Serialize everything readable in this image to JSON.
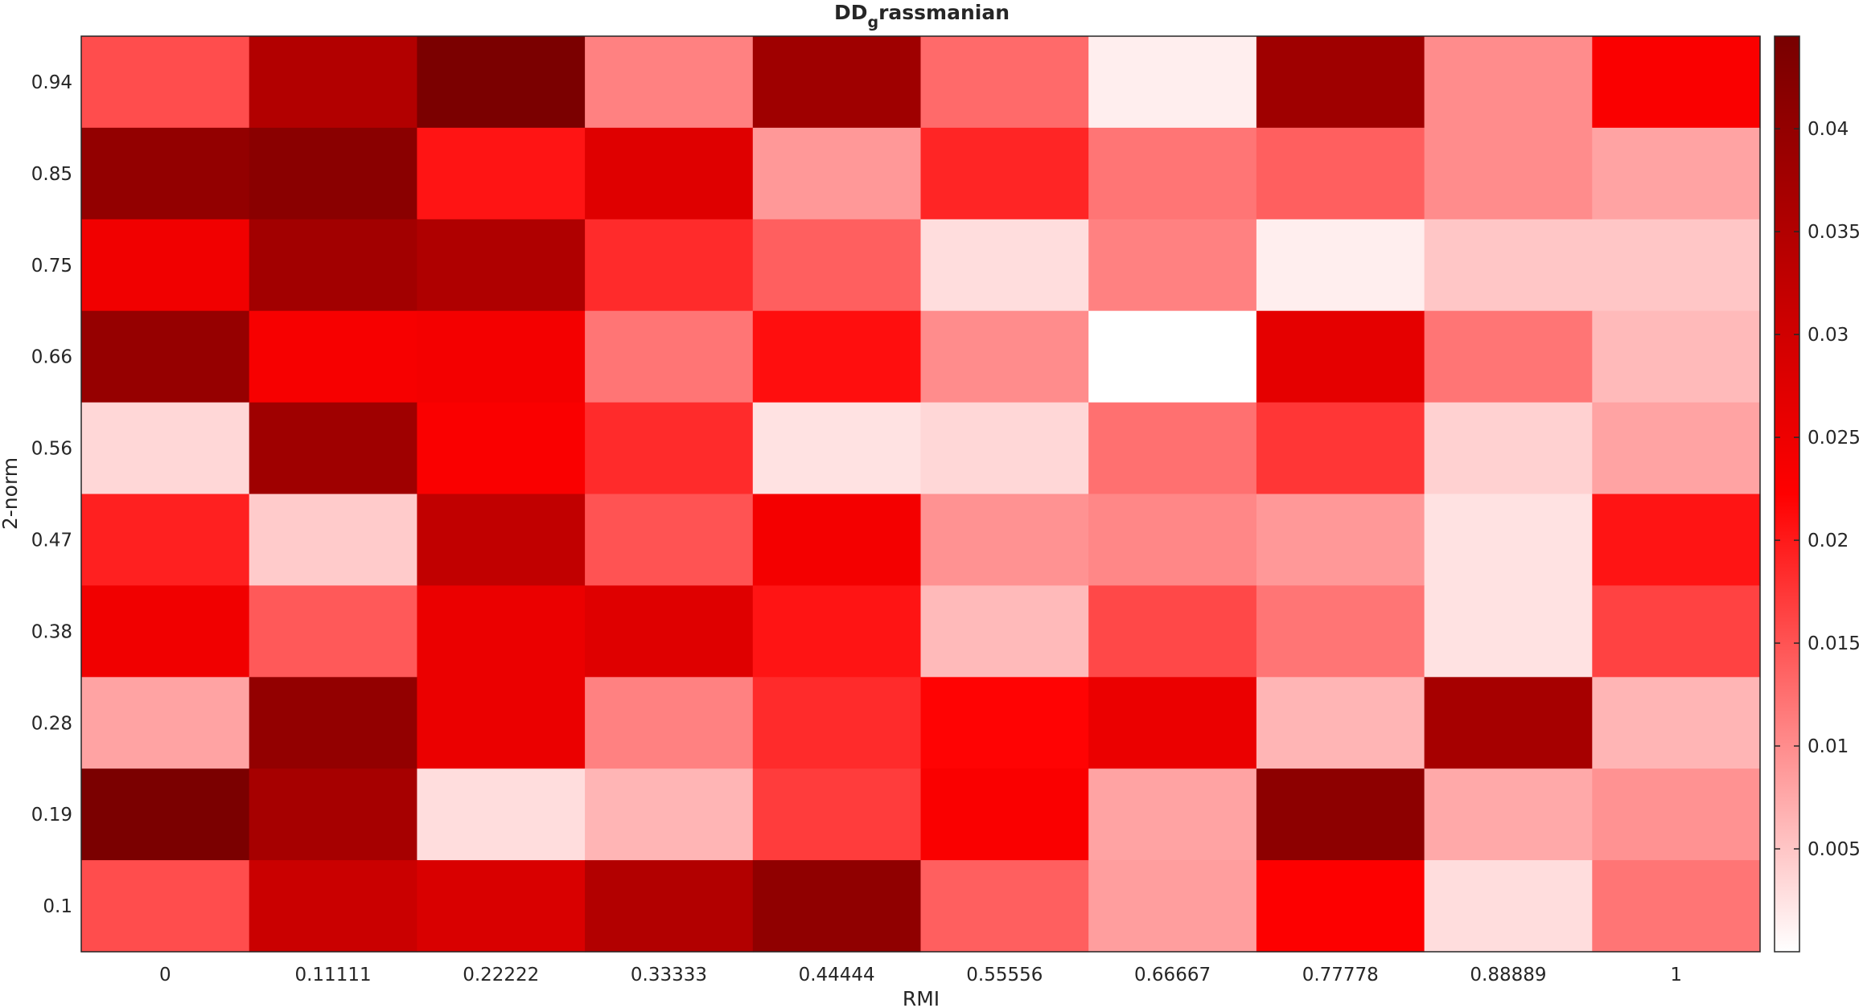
{
  "chart_data": {
    "type": "heatmap",
    "title_main": "DD",
    "title_sub": "g",
    "title_tail": "rassmanian",
    "xlabel": "RMI",
    "ylabel": "2-norm",
    "x_categories": [
      "0",
      "0.11111",
      "0.22222",
      "0.33333",
      "0.44444",
      "0.55556",
      "0.66667",
      "0.77778",
      "0.88889",
      "1"
    ],
    "y_categories": [
      "0.94",
      "0.85",
      "0.75",
      "0.66",
      "0.56",
      "0.47",
      "0.38",
      "0.28",
      "0.19",
      "0.1"
    ],
    "values": [
      [
        0.0155,
        0.035,
        0.044,
        0.011,
        0.038,
        0.013,
        0.0015,
        0.038,
        0.01,
        0.023
      ],
      [
        0.04,
        0.0415,
        0.0205,
        0.0275,
        0.009,
        0.019,
        0.012,
        0.014,
        0.01,
        0.008
      ],
      [
        0.0245,
        0.0375,
        0.0355,
        0.0185,
        0.014,
        0.003,
        0.011,
        0.0015,
        0.005,
        0.005
      ],
      [
        0.0395,
        0.0235,
        0.024,
        0.012,
        0.021,
        0.01,
        0.0,
        0.0265,
        0.012,
        0.006
      ],
      [
        0.0035,
        0.038,
        0.023,
        0.0185,
        0.0025,
        0.0035,
        0.0125,
        0.0175,
        0.004,
        0.008
      ],
      [
        0.0195,
        0.0045,
        0.0325,
        0.015,
        0.024,
        0.0095,
        0.0105,
        0.009,
        0.0025,
        0.0205
      ],
      [
        0.0245,
        0.0145,
        0.0255,
        0.0275,
        0.0205,
        0.006,
        0.016,
        0.012,
        0.0025,
        0.0165
      ],
      [
        0.008,
        0.04,
        0.0255,
        0.011,
        0.0185,
        0.022,
        0.0255,
        0.0065,
        0.037,
        0.0065
      ],
      [
        0.044,
        0.037,
        0.003,
        0.0065,
        0.017,
        0.023,
        0.008,
        0.041,
        0.0075,
        0.0095
      ],
      [
        0.0155,
        0.031,
        0.0285,
        0.035,
        0.0405,
        0.014,
        0.0085,
        0.0225,
        0.003,
        0.012
      ]
    ],
    "colorbar": {
      "min": 0.0,
      "max": 0.0445,
      "ticks": [
        0.005,
        0.01,
        0.015,
        0.02,
        0.025,
        0.03,
        0.035,
        0.04
      ],
      "tick_labels": [
        "0.005",
        "0.01",
        "0.015",
        "0.02",
        "0.025",
        "0.03",
        "0.035",
        "0.04"
      ],
      "colormap": [
        "#ffffff",
        "#ff0000",
        "#780000"
      ]
    }
  }
}
